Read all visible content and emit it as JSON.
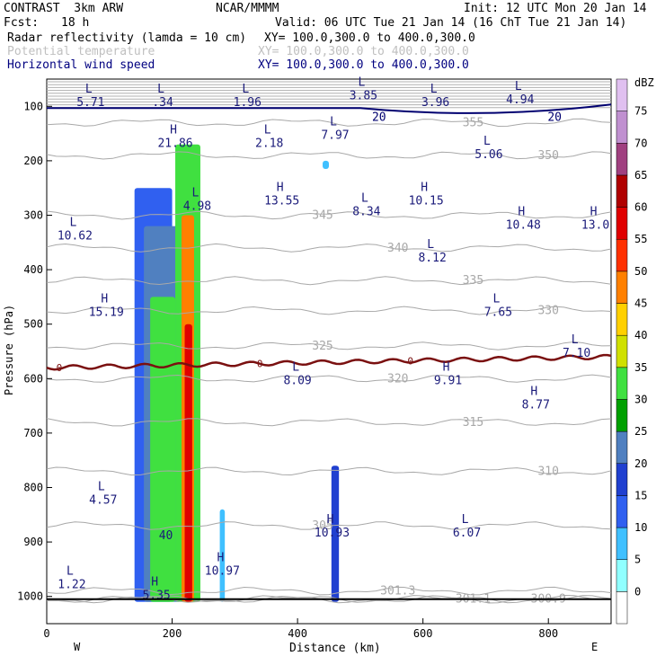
{
  "header": {
    "model": "CONTRAST  3km ARW",
    "org": "NCAR/MMMM",
    "init": "Init: 12 UTC Mon 20 Jan 14",
    "fcst_label": "Fcst:",
    "fcst_value": "18 h",
    "valid": "Valid: 06 UTC Tue 21 Jan 14 (16 ChT Tue 21 Jan 14)",
    "field1": "Radar reflectivity (lamda = 10 cm)",
    "field1_xy": "XY= 100.0,300.0 to 400.0,300.0",
    "field2": "Potential temperature",
    "field2_xy": "XY= 100.0,300.0 to 400.0,300.0",
    "field3": "Horizontal wind speed",
    "field3_xy": "XY= 100.0,300.0 to 400.0,300.0"
  },
  "colors": {
    "theta": "#a8a8a8",
    "zero_line": "#7a1010",
    "wind_contour": "#000070",
    "label_blue": "#1a1a7a"
  },
  "chart_data": {
    "type": "heatmap",
    "title": "",
    "xlabel": "Distance (km)",
    "ylabel": "Pressure (hPa)",
    "xlim": [
      0,
      900
    ],
    "ylim": [
      1050,
      50
    ],
    "x_ticks": [
      0,
      200,
      400,
      600,
      800
    ],
    "y_ticks": [
      100,
      200,
      300,
      400,
      500,
      600,
      700,
      800,
      900,
      1000
    ],
    "x_end_labels": {
      "left": "W",
      "right": "E"
    },
    "colorbar": {
      "unit": "dBZ",
      "levels": [
        0,
        5,
        10,
        15,
        20,
        25,
        30,
        35,
        40,
        45,
        50,
        55,
        60,
        65,
        70,
        75
      ],
      "colors": [
        "#ffffff",
        "#90ffff",
        "#40c0ff",
        "#3060f0",
        "#2040d0",
        "#5080c0",
        "#00a000",
        "#40e040",
        "#d0e000",
        "#ffd000",
        "#ff8000",
        "#ff3000",
        "#e00000",
        "#b00000",
        "#a04080",
        "#c090d0",
        "#e0c0f0"
      ]
    },
    "reflectivity_cells": [
      {
        "x": [
          140,
          200
        ],
        "p": [
          250,
          1010
        ],
        "dbz": 10
      },
      {
        "x": [
          155,
          215
        ],
        "p": [
          320,
          1010
        ],
        "dbz": 20
      },
      {
        "x": [
          165,
          205
        ],
        "p": [
          450,
          1010
        ],
        "dbz": 30
      },
      {
        "x": [
          205,
          245
        ],
        "p": [
          170,
          1010
        ],
        "dbz": 30
      },
      {
        "x": [
          215,
          235
        ],
        "p": [
          300,
          1010
        ],
        "dbz": 45
      },
      {
        "x": [
          220,
          232
        ],
        "p": [
          500,
          1010
        ],
        "dbz": 55
      },
      {
        "x": [
          276,
          284
        ],
        "p": [
          840,
          1010
        ],
        "dbz": 5
      },
      {
        "x": [
          454,
          466
        ],
        "p": [
          760,
          1010
        ],
        "dbz": 15
      },
      {
        "x": [
          440,
          450
        ],
        "p": [
          200,
          215
        ],
        "dbz": 5
      }
    ],
    "theta_contours": [
      {
        "value": "300.9",
        "p": 1005
      },
      {
        "value": "301.1",
        "p": 1005
      },
      {
        "value": "301.3",
        "p": 990
      },
      {
        "value": "305",
        "p": 870
      },
      {
        "value": "310",
        "p": 770
      },
      {
        "value": "315",
        "p": 680
      },
      {
        "value": "320",
        "p": 600
      },
      {
        "value": "325",
        "p": 540
      },
      {
        "value": "330",
        "p": 475
      },
      {
        "value": "335",
        "p": 420
      },
      {
        "value": "340",
        "p": 360
      },
      {
        "value": "345",
        "p": 300
      },
      {
        "value": "350",
        "p": 190
      },
      {
        "value": "355",
        "p": 130
      }
    ],
    "zero_contour": {
      "label": "0",
      "p_mean": 560
    },
    "wind_contours": [
      {
        "value": "20",
        "p": 100
      }
    ],
    "extrema": [
      {
        "type": "L",
        "value": "5.71",
        "x": 70,
        "p": 85
      },
      {
        "type": "L",
        "value": ".34",
        "x": 185,
        "p": 85
      },
      {
        "type": "L",
        "value": "1.96",
        "x": 320,
        "p": 85
      },
      {
        "type": "L",
        "value": "3.85",
        "x": 505,
        "p": 72
      },
      {
        "type": "L",
        "value": "3.96",
        "x": 620,
        "p": 85
      },
      {
        "type": "L",
        "value": "4.94",
        "x": 755,
        "p": 80
      },
      {
        "type": "H",
        "value": "21.86",
        "x": 205,
        "p": 160
      },
      {
        "type": "L",
        "value": "2.18",
        "x": 355,
        "p": 160
      },
      {
        "type": "L",
        "value": "7.97",
        "x": 460,
        "p": 145
      },
      {
        "type": "L",
        "value": "5.06",
        "x": 705,
        "p": 180
      },
      {
        "type": "H",
        "value": "13.55",
        "x": 375,
        "p": 265
      },
      {
        "type": "L",
        "value": "8.34",
        "x": 510,
        "p": 285
      },
      {
        "type": "H",
        "value": "10.15",
        "x": 605,
        "p": 265
      },
      {
        "type": "L",
        "value": "4.98",
        "x": 240,
        "p": 275
      },
      {
        "type": "H",
        "value": "10.48",
        "x": 760,
        "p": 310
      },
      {
        "type": "H",
        "value": "13.0",
        "x": 875,
        "p": 310
      },
      {
        "type": "L",
        "value": "10.62",
        "x": 45,
        "p": 330
      },
      {
        "type": "L",
        "value": "8.12",
        "x": 615,
        "p": 370
      },
      {
        "type": "H",
        "value": "15.19",
        "x": 95,
        "p": 470
      },
      {
        "type": "L",
        "value": "7.65",
        "x": 720,
        "p": 470
      },
      {
        "type": "L",
        "value": "7.10",
        "x": 845,
        "p": 545
      },
      {
        "type": "L",
        "value": "8.09",
        "x": 400,
        "p": 595
      },
      {
        "type": "H",
        "value": "9.91",
        "x": 640,
        "p": 595
      },
      {
        "type": "H",
        "value": "8.77",
        "x": 780,
        "p": 640
      },
      {
        "type": "L",
        "value": "4.57",
        "x": 90,
        "p": 815
      },
      {
        "type": "L",
        "value": "1.22",
        "x": 40,
        "p": 970
      },
      {
        "type": "L",
        "value": "6.07",
        "x": 670,
        "p": 875
      },
      {
        "type": "H",
        "value": "10.93",
        "x": 455,
        "p": 875
      },
      {
        "type": "H",
        "value": "10.97",
        "x": 280,
        "p": 945
      },
      {
        "type": "H",
        "value": "5.35",
        "x": 175,
        "p": 990
      },
      {
        "type": "",
        "value": "40",
        "x": 190,
        "p": 880
      }
    ]
  }
}
